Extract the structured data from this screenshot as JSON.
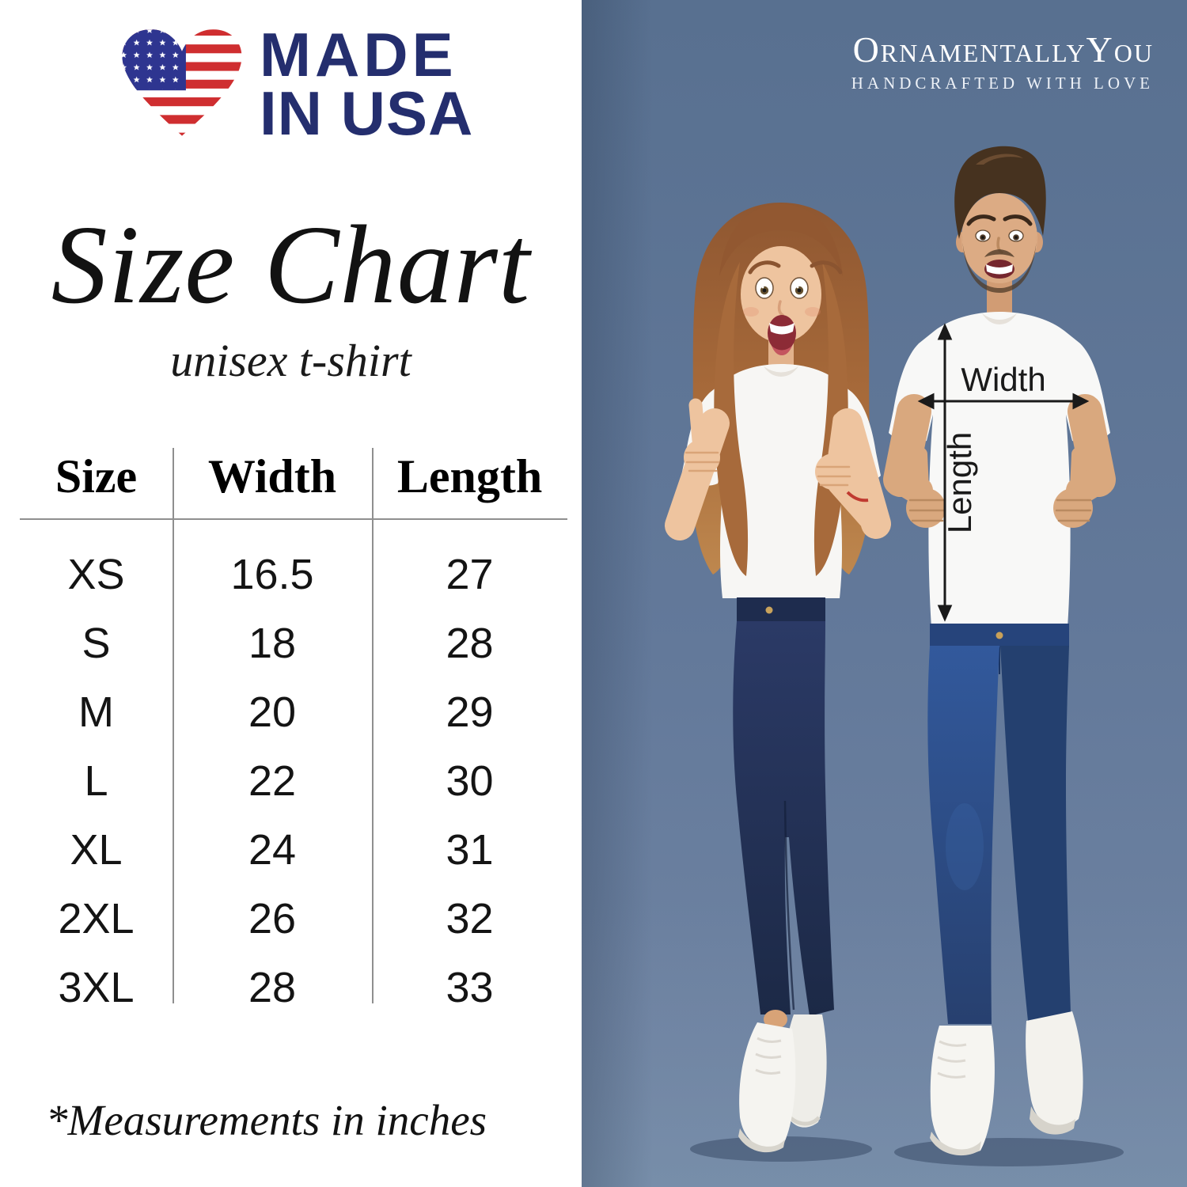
{
  "badge": {
    "icon": "usa-flag-heart-icon",
    "line1": "MADE",
    "line2": "IN USA"
  },
  "heading": {
    "title": "Size Chart",
    "subtitle": "unisex t-shirt"
  },
  "size_table": {
    "columns": [
      "Size",
      "Width",
      "Length"
    ],
    "rows": [
      [
        "XS",
        "16.5",
        "27"
      ],
      [
        "S",
        "18",
        "28"
      ],
      [
        "M",
        "20",
        "29"
      ],
      [
        "L",
        "22",
        "30"
      ],
      [
        "XL",
        "24",
        "31"
      ],
      [
        "2XL",
        "26",
        "32"
      ],
      [
        "3XL",
        "28",
        "33"
      ]
    ]
  },
  "footnote": "*Measurements in inches",
  "brand": {
    "name": "OrnamentallyYou",
    "tagline": "HANDCRAFTED WITH LOVE"
  },
  "photo": {
    "annotations": {
      "width_label": "Width",
      "length_label": "Length"
    }
  },
  "chart_data": {
    "type": "table",
    "title": "Size Chart",
    "subtitle": "unisex t-shirt",
    "columns": [
      "Size",
      "Width",
      "Length"
    ],
    "rows": [
      [
        "XS",
        16.5,
        27
      ],
      [
        "S",
        18,
        28
      ],
      [
        "M",
        20,
        29
      ],
      [
        "L",
        22,
        30
      ],
      [
        "XL",
        24,
        31
      ],
      [
        "2XL",
        26,
        32
      ],
      [
        "3XL",
        28,
        33
      ]
    ],
    "units": "inches",
    "footnote": "*Measurements in inches"
  },
  "colors": {
    "accent_navy": "#242e6e",
    "flag_red": "#cf2e30",
    "flag_blue": "#2e3590",
    "table_line": "#8f8f8f",
    "photo_bg_top": "#5d7392",
    "photo_bg_bottom": "#7186a3",
    "denim_woman": "#22335c",
    "denim_man": "#2f5795",
    "shirt_white": "#f7f6f4"
  }
}
